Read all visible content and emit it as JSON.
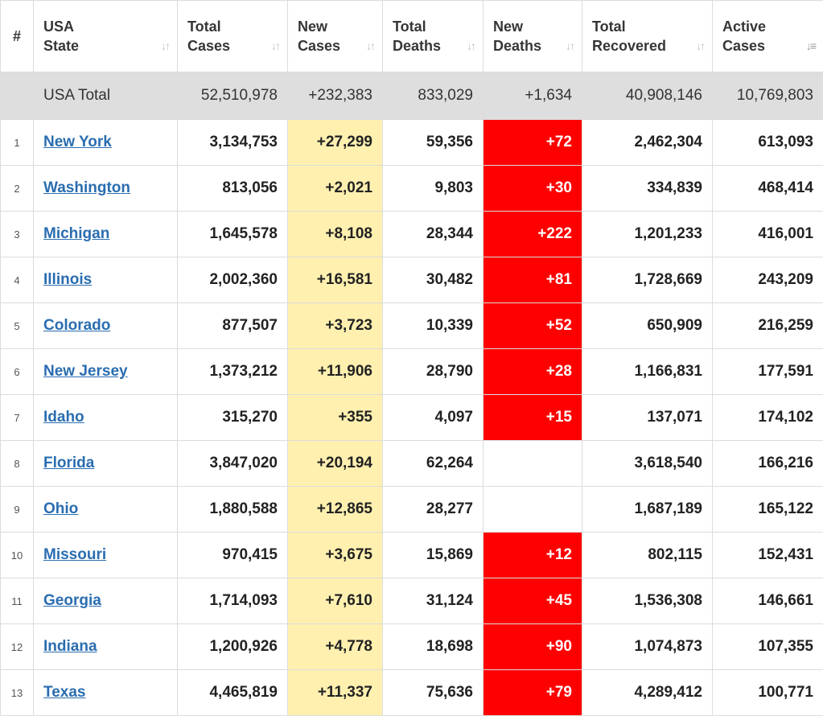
{
  "headers": [
    {
      "key": "num",
      "label": "#"
    },
    {
      "key": "state",
      "line1": "USA",
      "line2": "State"
    },
    {
      "key": "total_cases",
      "line1": "Total",
      "line2": "Cases"
    },
    {
      "key": "new_cases",
      "line1": "New",
      "line2": "Cases"
    },
    {
      "key": "total_deaths",
      "line1": "Total",
      "line2": "Deaths"
    },
    {
      "key": "new_deaths",
      "line1": "New",
      "line2": "Deaths"
    },
    {
      "key": "total_recovered",
      "line1": "Total",
      "line2": "Recovered"
    },
    {
      "key": "active_cases",
      "line1": "Active",
      "line2": "Cases"
    }
  ],
  "sort": {
    "column": "active_cases",
    "direction": "descending"
  },
  "total_row": {
    "state": "USA Total",
    "total_cases": "52,510,978",
    "new_cases": "+232,383",
    "total_deaths": "833,029",
    "new_deaths": "+1,634",
    "total_recovered": "40,908,146",
    "active_cases": "10,769,803"
  },
  "rows": [
    {
      "num": "1",
      "state": "New York",
      "total_cases": "3,134,753",
      "new_cases": "+27,299",
      "total_deaths": "59,356",
      "new_deaths": "+72",
      "total_recovered": "2,462,304",
      "active_cases": "613,093"
    },
    {
      "num": "2",
      "state": "Washington",
      "total_cases": "813,056",
      "new_cases": "+2,021",
      "total_deaths": "9,803",
      "new_deaths": "+30",
      "total_recovered": "334,839",
      "active_cases": "468,414"
    },
    {
      "num": "3",
      "state": "Michigan",
      "total_cases": "1,645,578",
      "new_cases": "+8,108",
      "total_deaths": "28,344",
      "new_deaths": "+222",
      "total_recovered": "1,201,233",
      "active_cases": "416,001"
    },
    {
      "num": "4",
      "state": "Illinois",
      "total_cases": "2,002,360",
      "new_cases": "+16,581",
      "total_deaths": "30,482",
      "new_deaths": "+81",
      "total_recovered": "1,728,669",
      "active_cases": "243,209"
    },
    {
      "num": "5",
      "state": "Colorado",
      "total_cases": "877,507",
      "new_cases": "+3,723",
      "total_deaths": "10,339",
      "new_deaths": "+52",
      "total_recovered": "650,909",
      "active_cases": "216,259"
    },
    {
      "num": "6",
      "state": "New Jersey",
      "total_cases": "1,373,212",
      "new_cases": "+11,906",
      "total_deaths": "28,790",
      "new_deaths": "+28",
      "total_recovered": "1,166,831",
      "active_cases": "177,591"
    },
    {
      "num": "7",
      "state": "Idaho",
      "total_cases": "315,270",
      "new_cases": "+355",
      "total_deaths": "4,097",
      "new_deaths": "+15",
      "total_recovered": "137,071",
      "active_cases": "174,102"
    },
    {
      "num": "8",
      "state": "Florida",
      "total_cases": "3,847,020",
      "new_cases": "+20,194",
      "total_deaths": "62,264",
      "new_deaths": "",
      "total_recovered": "3,618,540",
      "active_cases": "166,216"
    },
    {
      "num": "9",
      "state": "Ohio",
      "total_cases": "1,880,588",
      "new_cases": "+12,865",
      "total_deaths": "28,277",
      "new_deaths": "",
      "total_recovered": "1,687,189",
      "active_cases": "165,122"
    },
    {
      "num": "10",
      "state": "Missouri",
      "total_cases": "970,415",
      "new_cases": "+3,675",
      "total_deaths": "15,869",
      "new_deaths": "+12",
      "total_recovered": "802,115",
      "active_cases": "152,431"
    },
    {
      "num": "11",
      "state": "Georgia",
      "total_cases": "1,714,093",
      "new_cases": "+7,610",
      "total_deaths": "31,124",
      "new_deaths": "+45",
      "total_recovered": "1,536,308",
      "active_cases": "146,661"
    },
    {
      "num": "12",
      "state": "Indiana",
      "total_cases": "1,200,926",
      "new_cases": "+4,778",
      "total_deaths": "18,698",
      "new_deaths": "+90",
      "total_recovered": "1,074,873",
      "active_cases": "107,355"
    },
    {
      "num": "13",
      "state": "Texas",
      "total_cases": "4,465,819",
      "new_cases": "+11,337",
      "total_deaths": "75,636",
      "new_deaths": "+79",
      "total_recovered": "4,289,412",
      "active_cases": "100,771"
    }
  ],
  "colors": {
    "new_cases_bg": "#fff0b0",
    "new_deaths_bg": "#ff0000",
    "total_row_bg": "#dedede",
    "link": "#2a6db0"
  },
  "icons": {
    "sort_inactive": "sort-arrows-icon",
    "sort_active": "sort-descending-icon"
  }
}
